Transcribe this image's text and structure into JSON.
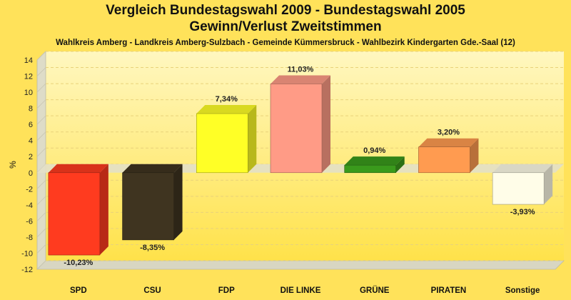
{
  "header": {
    "title_line1": "Vergleich Bundestagswahl 2009 - Bundestagswahl 2005",
    "title_line2": "Gewinn/Verlust Zweitstimmen",
    "subtitle": "Wahlkreis Amberg - Landkreis Amberg-Sulzbach - Gemeinde Kümmersbruck - Wahlbezirk Kindergarten Gde.-Saal (12)"
  },
  "chart_data": {
    "type": "bar",
    "title": "Vergleich Bundestagswahl 2009 - Bundestagswahl 2005",
    "subtitle": "Gewinn/Verlust Zweitstimmen",
    "ylabel": "%",
    "xlabel": "",
    "ylim": [
      -12,
      14
    ],
    "yticks": [
      14,
      12,
      10,
      8,
      6,
      4,
      2,
      0,
      -2,
      -4,
      -6,
      -8,
      -10,
      -12
    ],
    "grid": true,
    "legend": "none",
    "categories": [
      "SPD",
      "CSU",
      "FDP",
      "DIE LINKE",
      "GRÜNE",
      "PIRATEN",
      "Sonstige"
    ],
    "values": [
      -10.23,
      -8.35,
      7.34,
      11.03,
      0.94,
      3.2,
      -3.93
    ],
    "value_labels": [
      "-10,23%",
      "-8,35%",
      "7,34%",
      "11,03%",
      "0,94%",
      "3,20%",
      "-3,93%"
    ],
    "colors": [
      "#ff3b1f",
      "#3f3420",
      "#ffff26",
      "#ff9b86",
      "#3a9a1c",
      "#ff9b50",
      "#fffde8"
    ]
  }
}
